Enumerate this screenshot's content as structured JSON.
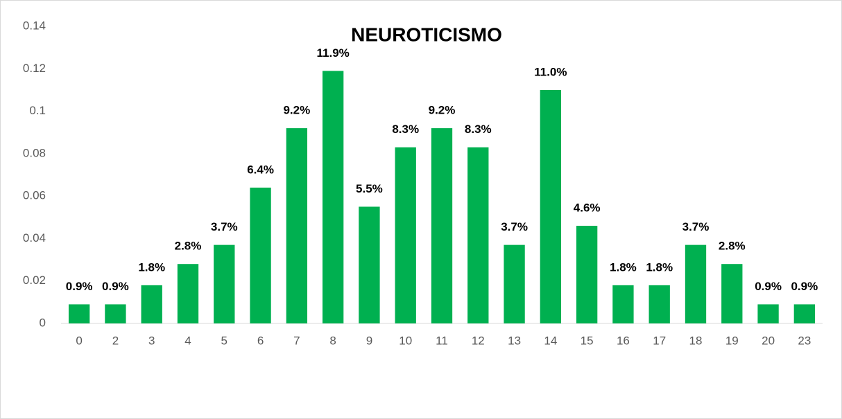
{
  "chart_data": {
    "type": "bar",
    "title": "NEUROTICISMO",
    "categories": [
      "0",
      "2",
      "3",
      "4",
      "5",
      "6",
      "7",
      "8",
      "9",
      "10",
      "11",
      "12",
      "13",
      "14",
      "15",
      "16",
      "17",
      "18",
      "19",
      "20",
      "23"
    ],
    "values": [
      0.009,
      0.009,
      0.018,
      0.028,
      0.037,
      0.064,
      0.092,
      0.119,
      0.055,
      0.083,
      0.092,
      0.083,
      0.037,
      0.11,
      0.046,
      0.018,
      0.018,
      0.037,
      0.028,
      0.009,
      0.009
    ],
    "value_labels": [
      "0.9%",
      "0.9%",
      "1.8%",
      "2.8%",
      "3.7%",
      "6.4%",
      "9.2%",
      "11.9%",
      "5.5%",
      "8.3%",
      "9.2%",
      "8.3%",
      "3.7%",
      "11.0%",
      "4.6%",
      "1.8%",
      "1.8%",
      "3.7%",
      "2.8%",
      "0.9%",
      "0.9%"
    ],
    "color": "#00b050",
    "ylim": [
      0,
      0.14
    ],
    "yticks": [
      0,
      0.02,
      0.04,
      0.06,
      0.08,
      0.1,
      0.12,
      0.14
    ],
    "grid": false
  }
}
